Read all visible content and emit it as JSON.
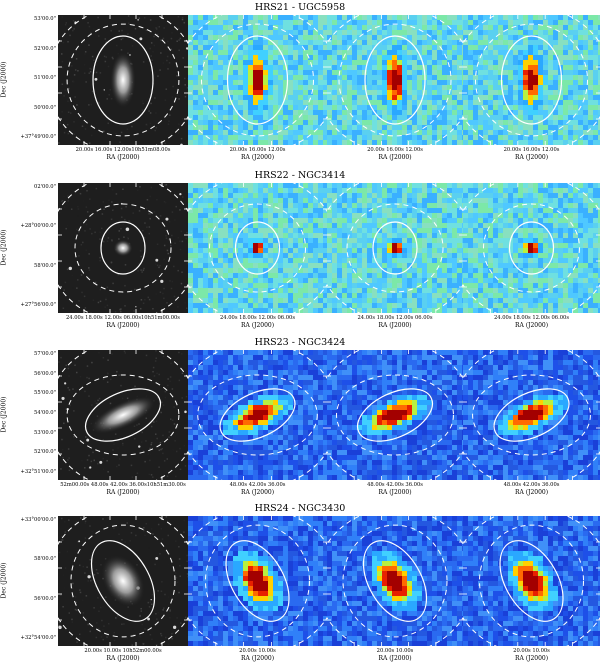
{
  "rows": [
    {
      "title": "HRS21 - UGC5958",
      "dec_ticks": [
        "53'00.0\"",
        "52'00.0\"",
        "51'00.0\"",
        "50'00.0\"",
        "+37°49'00.0\""
      ],
      "ra_ticks": [
        "20.00s  16.00s  12.00s10h51m08.00s",
        "20.00s  16.00s  12.00s",
        "20.00s  16.00s  12.00s",
        "20.00s  16.00s  12.00s"
      ],
      "source": {
        "rx": 8,
        "ry": 20,
        "angle": 0,
        "aperture_rx": 30,
        "aperture_ry": 44
      }
    },
    {
      "title": "HRS22 - NGC3414",
      "dec_ticks": [
        "02'00.0\"",
        "+28°00'00.0\"",
        "58'00.0\"",
        "+27°56'00.0\""
      ],
      "ra_ticks": [
        "24.00s  18.00s  12.00s  06.00s10h51m00.00s",
        "24.00s  18.00s  12.00s  06.00s",
        "24.00s  18.00s  12.00s  06.00s",
        "24.00s  18.00s  12.00s  06.00s"
      ],
      "source": {
        "rx": 6,
        "ry": 6,
        "angle": 0,
        "aperture_rx": 22,
        "aperture_ry": 26
      }
    },
    {
      "title": "HRS23 - NGC3424",
      "dec_ticks": [
        "57'00.0\"",
        "56'00.0\"",
        "55'00.0\"",
        "54'00.0\"",
        "53'00.0\"",
        "52'00.0\"",
        "+32°51'00.0\""
      ],
      "ra_ticks": [
        "52m00.00s  48.00s  42.00s  36.00s10h51m30.00s",
        "48.00s  42.00s  36.00s",
        "48.00s  42.00s  36.00s",
        "48.00s  42.00s  36.00s"
      ],
      "source": {
        "rx": 22,
        "ry": 9,
        "angle": -25,
        "aperture_rx": 40,
        "aperture_ry": 22
      }
    },
    {
      "title": "HRS24 - NGC3430",
      "dec_ticks": [
        "+33°00'00.0\"",
        "58'00.0\"",
        "56'00.0\"",
        "+32°54'00.0\""
      ],
      "ra_ticks": [
        "20.00s  10.00s  10h52m00.00s",
        "20.00s  10.00s",
        "20.00s  10.00s",
        "20.00s  10.00s"
      ],
      "source": {
        "rx": 12,
        "ry": 20,
        "angle": -30,
        "aperture_rx": 26,
        "aperture_ry": 44
      }
    }
  ],
  "ra_label": "RA (J2000)",
  "dec_label": "Dec (J2000)",
  "colors": {
    "contour": "#ffffff",
    "core": "#a30000",
    "background_low": "#2050e0",
    "background_high": "#7fd8ff"
  }
}
